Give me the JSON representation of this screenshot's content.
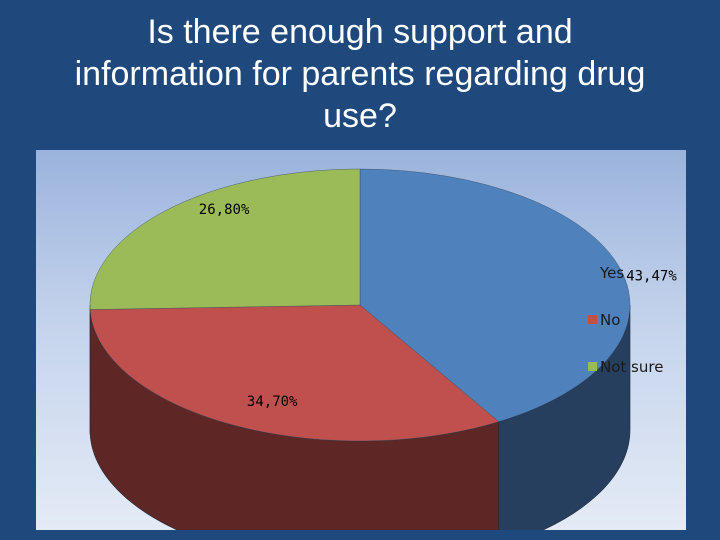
{
  "slide": {
    "title": "Is there enough support and information for parents regarding drug use?"
  },
  "chart_data": {
    "type": "pie",
    "title": "Is there enough support and information for parents regarding drug use?",
    "categories": [
      "Yes",
      "No",
      "Not sure"
    ],
    "values": [
      43.47,
      34.7,
      26.8
    ],
    "data_labels": [
      "43,47%",
      "34,70%",
      "26,80%"
    ],
    "legend": {
      "position": "right",
      "entries": [
        "Yes",
        "No",
        "Not sure"
      ]
    },
    "style": "3d",
    "colors": {
      "Yes": "#4f81bd",
      "Yes_side": "#263f5f",
      "No": "#c0504d",
      "No_side": "#5e2625",
      "Not sure": "#9bbb59",
      "Not sure_side": "#4b5c2b"
    }
  }
}
